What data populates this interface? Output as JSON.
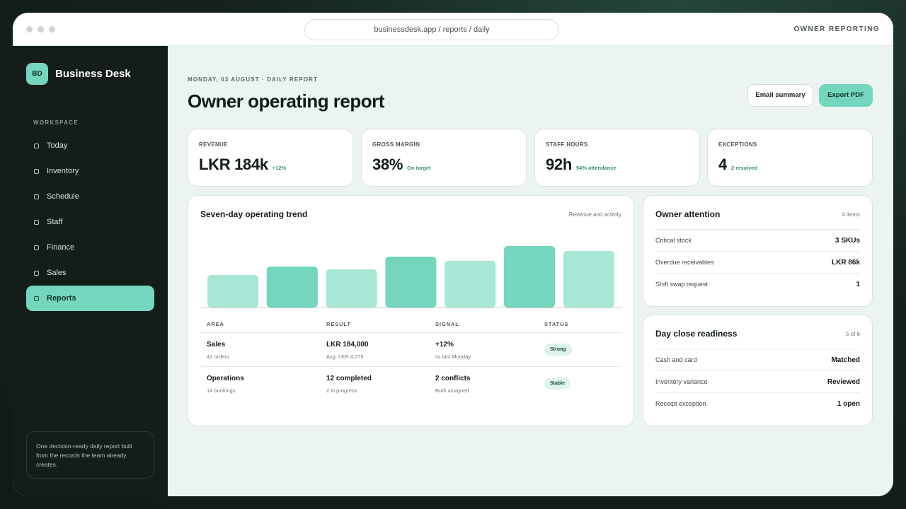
{
  "titlebar": {
    "url": "businessdesk.app / reports / daily",
    "section": "OWNER REPORTING"
  },
  "sidebar": {
    "brand_mark": "BD",
    "brand_name": "Business Desk",
    "section_label": "WORKSPACE",
    "items": [
      {
        "label": "Today",
        "active": false
      },
      {
        "label": "Inventory",
        "active": false
      },
      {
        "label": "Schedule",
        "active": false
      },
      {
        "label": "Staff",
        "active": false
      },
      {
        "label": "Finance",
        "active": false
      },
      {
        "label": "Sales",
        "active": false
      },
      {
        "label": "Reports",
        "active": true
      }
    ],
    "note": "One decision-ready daily report built from the records the team already creates."
  },
  "header": {
    "eyebrow": "MONDAY, 03 AUGUST · DAILY REPORT",
    "title": "Owner operating report",
    "email_label": "Email summary",
    "export_label": "Export PDF"
  },
  "kpis": [
    {
      "label": "REVENUE",
      "value": "LKR 184k",
      "delta": "+12%"
    },
    {
      "label": "GROSS MARGIN",
      "value": "38%",
      "delta": "On target"
    },
    {
      "label": "STAFF HOURS",
      "value": "92h",
      "delta": "94% attendance"
    },
    {
      "label": "EXCEPTIONS",
      "value": "4",
      "delta": "2 resolved"
    }
  ],
  "trend": {
    "title": "Seven-day operating trend",
    "meta": "Revenue and activity",
    "chart_data": {
      "type": "bar",
      "values": [
        46,
        58,
        54,
        72,
        66,
        87,
        80
      ],
      "highlight": [
        false,
        true,
        false,
        true,
        false,
        true,
        false
      ],
      "ylim": [
        0,
        100
      ]
    },
    "colors": {
      "highlight": "#74d6bd",
      "normal": "#a8e6d5",
      "baseline": "#c6cecb"
    },
    "columns": [
      "AREA",
      "RESULT",
      "SIGNAL",
      "STATUS"
    ],
    "rows": [
      {
        "area": "Sales",
        "area_sub": "43 orders",
        "result": "LKR 184,000",
        "result_sub": "Avg. LKR 4,279",
        "signal": "+12%",
        "signal_sub": "vs last Monday",
        "status": "Strong"
      },
      {
        "area": "Operations",
        "area_sub": "14 bookings",
        "result": "12 completed",
        "result_sub": "2 in progress",
        "signal": "2 conflicts",
        "signal_sub": "Both assigned",
        "status": "Stable"
      }
    ]
  },
  "attention": {
    "title": "Owner attention",
    "meta": "4 items",
    "rows": [
      {
        "k": "Critical stock",
        "v": "3 SKUs"
      },
      {
        "k": "Overdue receivables",
        "v": "LKR 86k"
      },
      {
        "k": "Shift swap request",
        "v": "1"
      }
    ]
  },
  "close": {
    "title": "Day close readiness",
    "meta": "5 of 6",
    "rows": [
      {
        "k": "Cash and card",
        "v": "Matched"
      },
      {
        "k": "Inventory variance",
        "v": "Reviewed"
      },
      {
        "k": "Receipt exception",
        "v": "1 open"
      }
    ]
  }
}
